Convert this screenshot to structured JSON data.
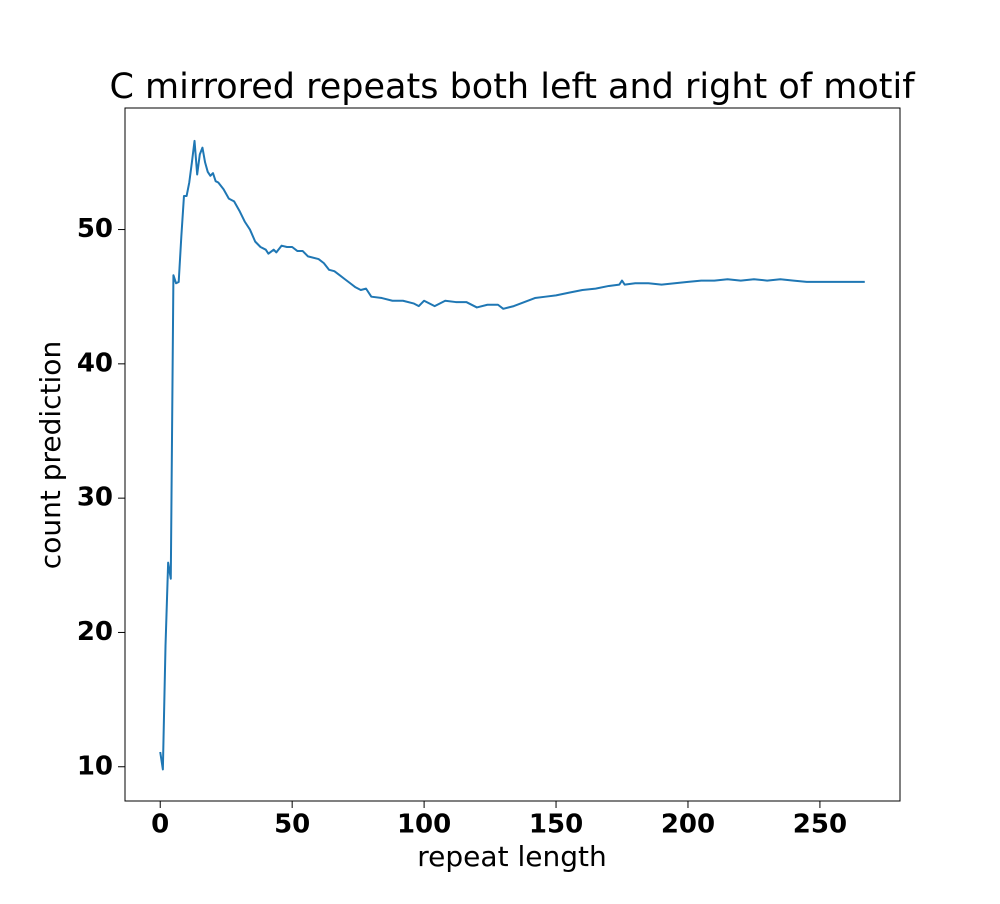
{
  "chart_data": {
    "type": "line",
    "title": "C mirrored repeats both left and right of motif",
    "xlabel": "repeat length",
    "ylabel": "count prediction",
    "xlim": [
      -13.35,
      280.35
    ],
    "ylim": [
      7.45,
      59.05
    ],
    "xticks": [
      0,
      50,
      100,
      150,
      200,
      250
    ],
    "yticks": [
      10,
      20,
      30,
      40,
      50
    ],
    "grid": false,
    "series": [
      {
        "color": "#1f77b4",
        "x": [
          0,
          1,
          2,
          3,
          4,
          5,
          6,
          7,
          8,
          9,
          10,
          11,
          12,
          13,
          14,
          15,
          16,
          17,
          18,
          19,
          20,
          21,
          22,
          24,
          26,
          28,
          30,
          32,
          34,
          36,
          38,
          40,
          41,
          43,
          44,
          46,
          48,
          50,
          52,
          54,
          56,
          60,
          62,
          64,
          66,
          68,
          70,
          72,
          74,
          76,
          78,
          80,
          84,
          88,
          92,
          96,
          98,
          100,
          104,
          108,
          112,
          116,
          120,
          124,
          128,
          130,
          134,
          138,
          142,
          146,
          150,
          155,
          160,
          165,
          170,
          174,
          175,
          176,
          180,
          185,
          190,
          195,
          200,
          205,
          210,
          215,
          220,
          225,
          230,
          235,
          240,
          245,
          267
        ],
        "values": [
          11.1,
          9.8,
          19,
          25.2,
          24,
          46.6,
          46.0,
          46.1,
          49.5,
          52.5,
          52.5,
          53.5,
          55,
          56.6,
          54.1,
          55.6,
          56.1,
          55,
          54.3,
          54,
          54.2,
          53.6,
          53.5,
          53,
          52.3,
          52.1,
          51.4,
          50.6,
          50,
          49.1,
          48.7,
          48.5,
          48.2,
          48.5,
          48.3,
          48.8,
          48.7,
          48.7,
          48.4,
          48.4,
          48.0,
          47.8,
          47.5,
          47.0,
          46.9,
          46.6,
          46.3,
          46.0,
          45.7,
          45.5,
          45.6,
          45.0,
          44.9,
          44.7,
          44.7,
          44.5,
          44.3,
          44.7,
          44.3,
          44.7,
          44.6,
          44.6,
          44.2,
          44.4,
          44.4,
          44.1,
          44.3,
          44.6,
          44.9,
          45.0,
          45.1,
          45.3,
          45.5,
          45.6,
          45.8,
          45.9,
          46.2,
          45.9,
          46.0,
          46.0,
          45.9,
          46.0,
          46.1,
          46.2,
          46.2,
          46.3,
          46.2,
          46.3,
          46.2,
          46.3,
          46.2,
          46.1,
          46.1
        ]
      }
    ]
  }
}
